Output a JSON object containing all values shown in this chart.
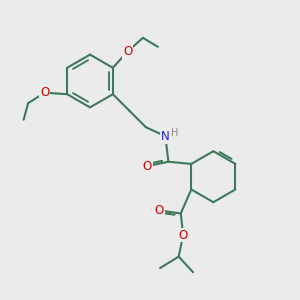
{
  "bg_color": "#ebebeb",
  "bond_color": "#3d7a5c",
  "bond_width": 1.5,
  "atom_colors": {
    "O": "#cc0000",
    "N": "#2222cc",
    "H": "#888888"
  },
  "font_size": 8.5
}
